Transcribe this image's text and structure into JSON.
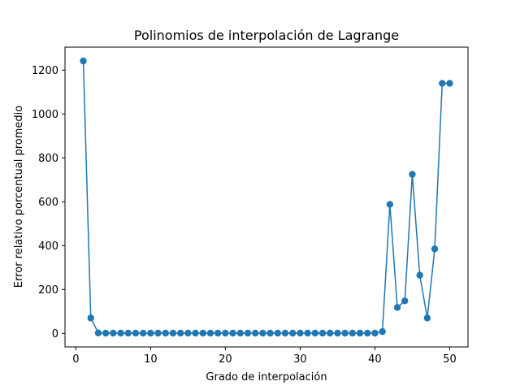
{
  "chart_data": {
    "type": "line",
    "title": "Polinomios de interpolación de Lagrange",
    "xlabel": "Grado de interpolación",
    "ylabel": "Error relativo porcentual promedio",
    "xlim": [
      -1.45,
      52.45
    ],
    "ylim": [
      -62,
      1305
    ],
    "xticks": [
      0,
      10,
      20,
      30,
      40,
      50
    ],
    "yticks": [
      0,
      200,
      400,
      600,
      800,
      1000,
      1200
    ],
    "grid": false,
    "marker": "circle",
    "color": "#1f77b4",
    "series": [
      {
        "x": [
          1,
          2,
          3,
          4,
          5,
          6,
          7,
          8,
          9,
          10,
          11,
          12,
          13,
          14,
          15,
          16,
          17,
          18,
          19,
          20,
          21,
          22,
          23,
          24,
          25,
          26,
          27,
          28,
          29,
          30,
          31,
          32,
          33,
          34,
          35,
          36,
          37,
          38,
          39,
          40,
          41,
          42,
          43,
          44,
          45,
          46,
          47,
          48,
          49,
          50
        ],
        "values": [
          1242,
          70,
          2,
          1,
          1,
          1,
          1,
          1,
          1,
          1,
          1,
          1,
          1,
          1,
          1,
          1,
          1,
          1,
          1,
          1,
          1,
          1,
          1,
          1,
          1,
          1,
          1,
          1,
          1,
          1,
          1,
          1,
          1,
          1,
          1,
          1,
          1,
          1,
          1,
          1,
          8,
          588,
          118,
          148,
          725,
          265,
          70,
          385,
          1140,
          1140
        ]
      }
    ]
  }
}
